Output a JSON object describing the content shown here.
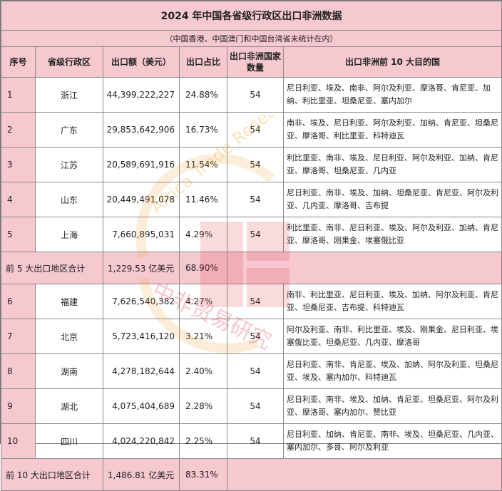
{
  "title": "2024 年中国各省级行政区出口非洲数据",
  "subtitle": "（中国香港、中国澳门和中国台湾省未统计在内）",
  "headers": {
    "index": "序号",
    "province": "省级行政区",
    "amount": "出口额（美元）",
    "share": "出口占比",
    "countries": "出口非洲国家数量",
    "destinations": "出口非洲前 10 大目的国"
  },
  "rows": [
    {
      "index": "1",
      "province": "浙江",
      "amount": "44,399,222,227",
      "share": "24.88%",
      "countries": "54",
      "destinations": "尼日利亚、埃及、南非、阿尔及利亚、摩洛哥、肯尼亚、加纳、利比里亚、坦桑尼亚、塞内加尔"
    },
    {
      "index": "2",
      "province": "广东",
      "amount": "29,853,642,906",
      "share": "16.73%",
      "countries": "54",
      "destinations": "南非、埃及、尼日利亚、阿尔及利亚、加纳、肯尼亚、坦桑尼亚、摩洛哥、利比里亚、科特迪瓦"
    },
    {
      "index": "3",
      "province": "江苏",
      "amount": "20,589,691,916",
      "share": "11.54%",
      "countries": "54",
      "destinations": "利比里亚、南非、埃及、尼日利亚、阿尔及利亚、加纳、肯尼亚、摩洛哥、坦桑尼亚、几内亚"
    },
    {
      "index": "4",
      "province": "山东",
      "amount": "20,449,491,078",
      "share": "11.46%",
      "countries": "54",
      "destinations": "尼日利亚、南非、埃及、加纳、坦桑尼亚、肯尼亚、阿尔及利亚、几内亚、摩洛哥、吉布提"
    },
    {
      "index": "5",
      "province": "上海",
      "amount": "7,660,895,031",
      "share": "4.29%",
      "countries": "54",
      "destinations": "利比里亚、南非、尼日利亚、埃及、阿尔及利亚、加纳、肯尼亚、摩洛哥、刚果金、埃塞俄比亚"
    },
    {
      "index": "6",
      "province": "福建",
      "amount": "7,626,540,382",
      "share": "4.27%",
      "countries": "54",
      "destinations": "南非、利比里亚、尼日利亚、埃及、加纳、阿尔及利亚、肯尼亚、坦桑尼亚、吉布提、科特迪瓦"
    },
    {
      "index": "7",
      "province": "北京",
      "amount": "5,723,416,120",
      "share": "3.21%",
      "countries": "54",
      "destinations": "阿尔及利亚、南非、利比里亚、埃及、刚果金、尼日利亚、埃塞俄比亚、坦桑尼亚、几内亚、摩洛哥"
    },
    {
      "index": "8",
      "province": "湖南",
      "amount": "4,278,182,644",
      "share": "2.40%",
      "countries": "54",
      "destinations": "尼日利亚、南非、肯尼亚、埃及、加纳、阿尔及利亚、坦桑尼亚、埃及、塞内加尔、科特迪瓦"
    },
    {
      "index": "9",
      "province": "湖北",
      "amount": "4,075,404,689",
      "share": "2.28%",
      "countries": "54",
      "destinations": "尼日利亚、南非、埃及、加纳、肯尼亚、坦桑尼亚、阿尔及利亚、摩洛哥、塞内加尔、赞比亚"
    },
    {
      "index": "10",
      "province": "四川",
      "amount": "4,024,220,842",
      "share": "2.25%",
      "countries": "54",
      "destinations": "尼日利亚、加纳、肯尼亚、南非、埃及、坦桑尼亚、几内亚、塞内加尔、多哥、阿尔及利亚"
    }
  ],
  "subtotal5": {
    "label": "前 5 大出口地区合计",
    "amount": "1,229.53 亿美元",
    "share": "68.90%"
  },
  "subtotal10": {
    "label": "前 10 大出口地区合计",
    "amount": "1,486.81 亿美元",
    "share": "83.31%"
  },
  "watermark": {
    "latin": "Africa Trade Research",
    "chinese": "中非贸易研究"
  }
}
